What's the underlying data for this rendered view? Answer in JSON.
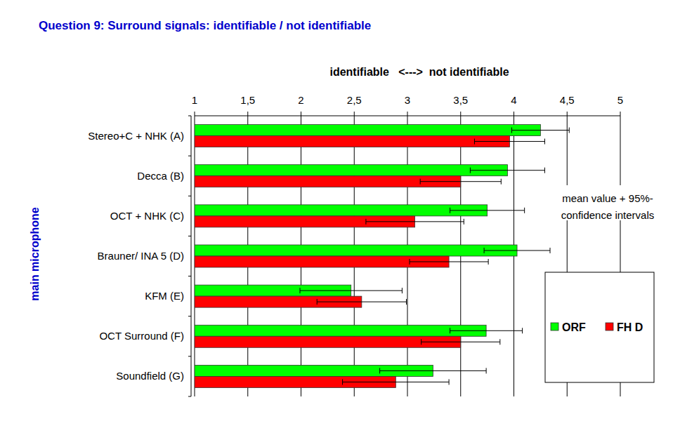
{
  "chart_data": {
    "type": "bar",
    "orientation": "horizontal",
    "title": "Question 9: Surround signals: identifiable / not identifiable",
    "x_label": "identifiable   <--->  not identifiable",
    "y_label": "main microphone",
    "annotations": [
      "mean value + 95%-",
      "confidence intervals"
    ],
    "categories": [
      "Stereo+C + NHK (A)",
      "Decca (B)",
      "OCT + NHK (C)",
      "Brauner/ INA 5 (D)",
      "KFM (E)",
      "OCT Surround (F)",
      "Soundfield (G)"
    ],
    "series": [
      {
        "name": "ORF",
        "color": "#00ff00",
        "values": [
          4.25,
          3.94,
          3.75,
          4.03,
          2.47,
          3.74,
          3.24
        ],
        "errors": [
          0.27,
          0.35,
          0.35,
          0.31,
          0.48,
          0.34,
          0.5
        ]
      },
      {
        "name": "FH D",
        "color": "#ff0000",
        "values": [
          3.96,
          3.5,
          3.07,
          3.39,
          2.57,
          3.5,
          2.89
        ],
        "errors": [
          0.33,
          0.38,
          0.46,
          0.37,
          0.42,
          0.37,
          0.5
        ]
      }
    ],
    "xlim": [
      1,
      5
    ],
    "xticks": [
      1,
      {
        "value": 1.5,
        "label": "1,5"
      },
      2,
      {
        "value": 2.5,
        "label": "2,5"
      },
      3,
      {
        "value": 3.5,
        "label": "3,5"
      },
      4,
      {
        "value": 4.5,
        "label": "4,5"
      },
      5
    ],
    "grid": true,
    "legend": "lower right"
  }
}
